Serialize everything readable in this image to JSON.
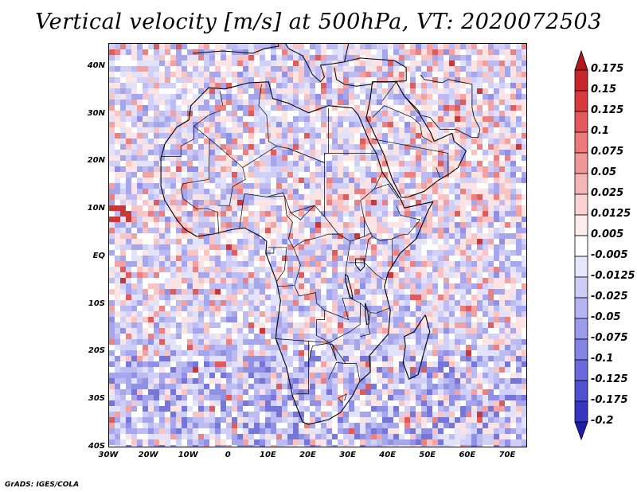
{
  "title": "Vertical velocity [m/s] at 500hPa, VT: 2020072503",
  "credit": "GrADS: IGES/COLA",
  "map": {
    "lon_range": [
      -30,
      75
    ],
    "lat_range": [
      -40,
      45
    ],
    "lat_ticks": [
      {
        "value": 40,
        "label": "40N"
      },
      {
        "value": 30,
        "label": "30N"
      },
      {
        "value": 20,
        "label": "20N"
      },
      {
        "value": 10,
        "label": "10N"
      },
      {
        "value": 0,
        "label": "EQ"
      },
      {
        "value": -10,
        "label": "10S"
      },
      {
        "value": -20,
        "label": "20S"
      },
      {
        "value": -30,
        "label": "30S"
      },
      {
        "value": -40,
        "label": "40S"
      }
    ],
    "lon_ticks": [
      {
        "value": -30,
        "label": "30W"
      },
      {
        "value": -20,
        "label": "20W"
      },
      {
        "value": -10,
        "label": "10W"
      },
      {
        "value": 0,
        "label": "0"
      },
      {
        "value": 10,
        "label": "10E"
      },
      {
        "value": 20,
        "label": "20E"
      },
      {
        "value": 30,
        "label": "30E"
      },
      {
        "value": 40,
        "label": "40E"
      },
      {
        "value": 50,
        "label": "50E"
      },
      {
        "value": 60,
        "label": "60E"
      },
      {
        "value": 70,
        "label": "70E"
      }
    ]
  },
  "colorbar": {
    "bins": [
      {
        "color": "#b0181e"
      },
      {
        "color": "#c8262c"
      },
      {
        "color": "#d83a3e"
      },
      {
        "color": "#e45a5c"
      },
      {
        "color": "#ec7a7a"
      },
      {
        "color": "#f29898"
      },
      {
        "color": "#f6b6b6"
      },
      {
        "color": "#fad2d2"
      },
      {
        "color": "#fdecec"
      },
      {
        "color": "#ffffff"
      },
      {
        "color": "#e6e6fc"
      },
      {
        "color": "#cdcdf8"
      },
      {
        "color": "#b4b4f2"
      },
      {
        "color": "#9c9cec"
      },
      {
        "color": "#8484e4"
      },
      {
        "color": "#6a6adc"
      },
      {
        "color": "#5050d0"
      },
      {
        "color": "#3636c0"
      },
      {
        "color": "#1e1eaa"
      }
    ],
    "labels": [
      "0.175",
      "0.15",
      "0.125",
      "0.1",
      "0.075",
      "0.05",
      "0.025",
      "0.0125",
      "0.005",
      "-0.005",
      "-0.0125",
      "-0.025",
      "-0.05",
      "-0.075",
      "-0.1",
      "-0.125",
      "-0.175",
      "-0.2"
    ]
  }
}
